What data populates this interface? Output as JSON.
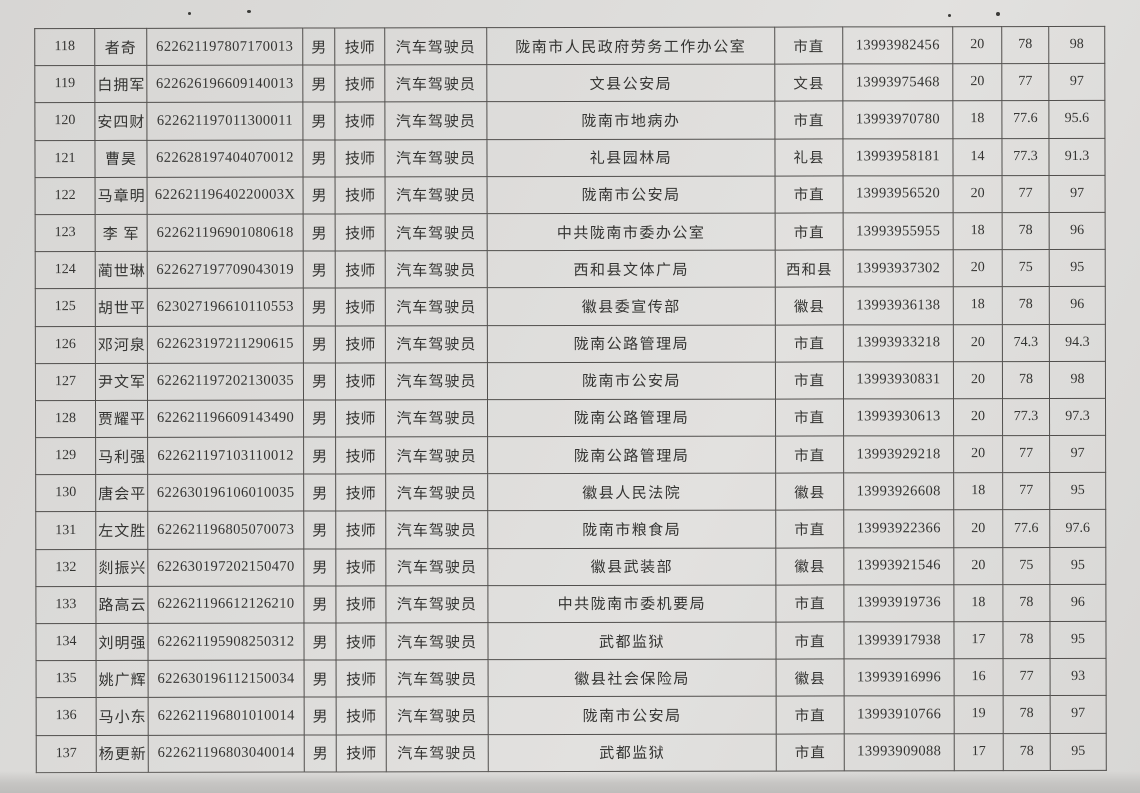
{
  "table": {
    "rows": [
      {
        "no": "118",
        "name": "者奇",
        "id": "622621197807170013",
        "gender": "男",
        "title": "技师",
        "trade": "汽车驾驶员",
        "unit": "陇南市人民政府劳务工作办公室",
        "region": "市直",
        "phone": "13993982456",
        "s1": "20",
        "s2": "78",
        "s3": "98"
      },
      {
        "no": "119",
        "name": "白拥军",
        "id": "622626196609140013",
        "gender": "男",
        "title": "技师",
        "trade": "汽车驾驶员",
        "unit": "文县公安局",
        "region": "文县",
        "phone": "13993975468",
        "s1": "20",
        "s2": "77",
        "s3": "97"
      },
      {
        "no": "120",
        "name": "安四财",
        "id": "622621197011300011",
        "gender": "男",
        "title": "技师",
        "trade": "汽车驾驶员",
        "unit": "陇南市地病办",
        "region": "市直",
        "phone": "13993970780",
        "s1": "18",
        "s2": "77.6",
        "s3": "95.6"
      },
      {
        "no": "121",
        "name": "曹昊",
        "id": "622628197404070012",
        "gender": "男",
        "title": "技师",
        "trade": "汽车驾驶员",
        "unit": "礼县园林局",
        "region": "礼县",
        "phone": "13993958181",
        "s1": "14",
        "s2": "77.3",
        "s3": "91.3"
      },
      {
        "no": "122",
        "name": "马章明",
        "id": "62262119640220003X",
        "gender": "男",
        "title": "技师",
        "trade": "汽车驾驶员",
        "unit": "陇南市公安局",
        "region": "市直",
        "phone": "13993956520",
        "s1": "20",
        "s2": "77",
        "s3": "97"
      },
      {
        "no": "123",
        "name": "李 军",
        "id": "622621196901080618",
        "gender": "男",
        "title": "技师",
        "trade": "汽车驾驶员",
        "unit": "中共陇南市委办公室",
        "region": "市直",
        "phone": "13993955955",
        "s1": "18",
        "s2": "78",
        "s3": "96"
      },
      {
        "no": "124",
        "name": "蔺世琳",
        "id": "622627197709043019",
        "gender": "男",
        "title": "技师",
        "trade": "汽车驾驶员",
        "unit": "西和县文体广局",
        "region": "西和县",
        "phone": "13993937302",
        "s1": "20",
        "s2": "75",
        "s3": "95"
      },
      {
        "no": "125",
        "name": "胡世平",
        "id": "623027196610110553",
        "gender": "男",
        "title": "技师",
        "trade": "汽车驾驶员",
        "unit": "徽县委宣传部",
        "region": "徽县",
        "phone": "13993936138",
        "s1": "18",
        "s2": "78",
        "s3": "96"
      },
      {
        "no": "126",
        "name": "邓河泉",
        "id": "622623197211290615",
        "gender": "男",
        "title": "技师",
        "trade": "汽车驾驶员",
        "unit": "陇南公路管理局",
        "region": "市直",
        "phone": "13993933218",
        "s1": "20",
        "s2": "74.3",
        "s3": "94.3"
      },
      {
        "no": "127",
        "name": "尹文军",
        "id": "622621197202130035",
        "gender": "男",
        "title": "技师",
        "trade": "汽车驾驶员",
        "unit": "陇南市公安局",
        "region": "市直",
        "phone": "13993930831",
        "s1": "20",
        "s2": "78",
        "s3": "98"
      },
      {
        "no": "128",
        "name": "贾耀平",
        "id": "622621196609143490",
        "gender": "男",
        "title": "技师",
        "trade": "汽车驾驶员",
        "unit": "陇南公路管理局",
        "region": "市直",
        "phone": "13993930613",
        "s1": "20",
        "s2": "77.3",
        "s3": "97.3"
      },
      {
        "no": "129",
        "name": "马利强",
        "id": "622621197103110012",
        "gender": "男",
        "title": "技师",
        "trade": "汽车驾驶员",
        "unit": "陇南公路管理局",
        "region": "市直",
        "phone": "13993929218",
        "s1": "20",
        "s2": "77",
        "s3": "97"
      },
      {
        "no": "130",
        "name": "唐会平",
        "id": "622630196106010035",
        "gender": "男",
        "title": "技师",
        "trade": "汽车驾驶员",
        "unit": "徽县人民法院",
        "region": "徽县",
        "phone": "13993926608",
        "s1": "18",
        "s2": "77",
        "s3": "95"
      },
      {
        "no": "131",
        "name": "左文胜",
        "id": "622621196805070073",
        "gender": "男",
        "title": "技师",
        "trade": "汽车驾驶员",
        "unit": "陇南市粮食局",
        "region": "市直",
        "phone": "13993922366",
        "s1": "20",
        "s2": "77.6",
        "s3": "97.6"
      },
      {
        "no": "132",
        "name": "剡振兴",
        "id": "622630197202150470",
        "gender": "男",
        "title": "技师",
        "trade": "汽车驾驶员",
        "unit": "徽县武装部",
        "region": "徽县",
        "phone": "13993921546",
        "s1": "20",
        "s2": "75",
        "s3": "95"
      },
      {
        "no": "133",
        "name": "路高云",
        "id": "622621196612126210",
        "gender": "男",
        "title": "技师",
        "trade": "汽车驾驶员",
        "unit": "中共陇南市委机要局",
        "region": "市直",
        "phone": "13993919736",
        "s1": "18",
        "s2": "78",
        "s3": "96"
      },
      {
        "no": "134",
        "name": "刘明强",
        "id": "622621195908250312",
        "gender": "男",
        "title": "技师",
        "trade": "汽车驾驶员",
        "unit": "武都监狱",
        "region": "市直",
        "phone": "13993917938",
        "s1": "17",
        "s2": "78",
        "s3": "95"
      },
      {
        "no": "135",
        "name": "姚广辉",
        "id": "622630196112150034",
        "gender": "男",
        "title": "技师",
        "trade": "汽车驾驶员",
        "unit": "徽县社会保险局",
        "region": "徽县",
        "phone": "13993916996",
        "s1": "16",
        "s2": "77",
        "s3": "93"
      },
      {
        "no": "136",
        "name": "马小东",
        "id": "622621196801010014",
        "gender": "男",
        "title": "技师",
        "trade": "汽车驾驶员",
        "unit": "陇南市公安局",
        "region": "市直",
        "phone": "13993910766",
        "s1": "19",
        "s2": "78",
        "s3": "97"
      },
      {
        "no": "137",
        "name": "杨更新",
        "id": "622621196803040014",
        "gender": "男",
        "title": "技师",
        "trade": "汽车驾驶员",
        "unit": "武都监狱",
        "region": "市直",
        "phone": "13993909088",
        "s1": "17",
        "s2": "78",
        "s3": "95"
      }
    ]
  }
}
